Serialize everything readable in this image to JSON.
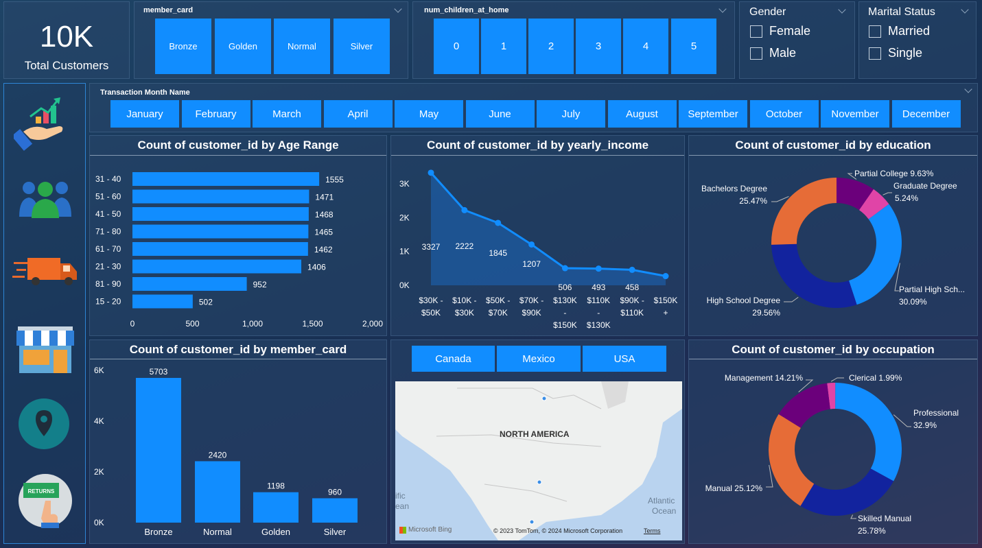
{
  "kpi": {
    "value": "10K",
    "label": "Total Customers"
  },
  "member_card_slicer": {
    "title": "member_card",
    "options": [
      "Bronze",
      "Golden",
      "Normal",
      "Silver"
    ]
  },
  "children_slicer": {
    "title": "num_children_at_home",
    "options": [
      "0",
      "1",
      "2",
      "3",
      "4",
      "5"
    ]
  },
  "gender_slicer": {
    "title": "Gender",
    "options": [
      "Female",
      "Male"
    ]
  },
  "marital_slicer": {
    "title": "Marital Status",
    "options": [
      "Married",
      "Single"
    ]
  },
  "month_slicer": {
    "title": "Transaction Month Name",
    "options": [
      "January",
      "February",
      "March",
      "April",
      "May",
      "June",
      "July",
      "August",
      "September",
      "October",
      "November",
      "December"
    ]
  },
  "nav_icons": [
    "sales-hand-icon",
    "customers-group-icon",
    "delivery-truck-icon",
    "store-front-icon",
    "location-pin-icon",
    "returns-sign-icon"
  ],
  "colors": {
    "accent": "#118dff",
    "dark_blue": "#12239e",
    "orange": "#e66c37",
    "purple": "#6b007b",
    "pink": "#e044a7"
  },
  "country_slicer": {
    "options": [
      "Canada",
      "Mexico",
      "USA"
    ]
  },
  "map": {
    "region_label": "NORTH AMERICA",
    "bing": "Microsoft Bing",
    "copyright": "© 2023 TomTom, © 2024 Microsoft Corporation",
    "terms": "Terms",
    "ocean_right": "Atlantic",
    "ocean_right2": "Ocean",
    "ocean_left": "ific",
    "ocean_left2": "ean"
  },
  "chart_data": [
    {
      "id": "age",
      "type": "bar",
      "orientation": "horizontal",
      "title": "Count of customer_id by Age Range",
      "categories": [
        "31 - 40",
        "51 - 60",
        "41 - 50",
        "71 - 80",
        "61 - 70",
        "21 - 30",
        "81 - 90",
        "15 - 20"
      ],
      "values": [
        1555,
        1471,
        1468,
        1465,
        1462,
        1406,
        952,
        502
      ],
      "xlim": [
        0,
        2000
      ],
      "xticks": [
        "0",
        "500",
        "1,000",
        "1,500",
        "2,000"
      ]
    },
    {
      "id": "income",
      "type": "area",
      "title": "Count of customer_id by yearly_income",
      "categories": [
        [
          "$30K -",
          "$50K"
        ],
        [
          "$10K -",
          "$30K"
        ],
        [
          "$50K -",
          "$70K"
        ],
        [
          "$70K -",
          "$90K"
        ],
        [
          "$130K",
          "-",
          "$150K"
        ],
        [
          "$110K",
          "-",
          "$130K"
        ],
        [
          "$90K -",
          "$110K"
        ],
        [
          "$150K",
          "+"
        ]
      ],
      "values": [
        3327,
        2222,
        1845,
        1207,
        506,
        493,
        458,
        273
      ],
      "labels": [
        "3327",
        "2222",
        "1845",
        "1207",
        "506",
        "493",
        "458",
        ""
      ],
      "ylim": [
        0,
        3000
      ],
      "yticks": [
        "0K",
        "1K",
        "2K",
        "3K"
      ]
    },
    {
      "id": "education",
      "type": "pie",
      "title": "Count of customer_id by education",
      "slices": [
        {
          "name": "Partial College",
          "pct": "9.63%",
          "value": 9.63,
          "color": "#6b007b"
        },
        {
          "name": "Graduate Degree",
          "pct": "5.24%",
          "value": 5.24,
          "color": "#e044a7"
        },
        {
          "name": "Partial High Sch...",
          "pct": "30.09%",
          "value": 30.09,
          "color": "#118dff"
        },
        {
          "name": "High School Degree",
          "pct": "29.56%",
          "value": 29.56,
          "color": "#12239e"
        },
        {
          "name": "Bachelors Degree",
          "pct": "25.47%",
          "value": 25.47,
          "color": "#e66c37"
        }
      ]
    },
    {
      "id": "member",
      "type": "bar",
      "title": "Count of customer_id by member_card",
      "categories": [
        "Bronze",
        "Normal",
        "Golden",
        "Silver"
      ],
      "values": [
        5703,
        2420,
        1198,
        960
      ],
      "ylim": [
        0,
        6000
      ],
      "yticks": [
        "0K",
        "2K",
        "4K",
        "6K"
      ]
    },
    {
      "id": "occupation",
      "type": "pie",
      "title": "Count of customer_id by occupation",
      "slices": [
        {
          "name": "Clerical",
          "pct": "1.99%",
          "value": 1.99,
          "color": "#e044a7"
        },
        {
          "name": "Professional",
          "pct": "32.9%",
          "value": 32.9,
          "color": "#118dff"
        },
        {
          "name": "Skilled Manual",
          "pct": "25.78%",
          "value": 25.78,
          "color": "#12239e"
        },
        {
          "name": "Manual",
          "pct": "25.12%",
          "value": 25.12,
          "color": "#e66c37"
        },
        {
          "name": "Management",
          "pct": "14.21%",
          "value": 14.21,
          "color": "#6b007b"
        }
      ]
    }
  ]
}
